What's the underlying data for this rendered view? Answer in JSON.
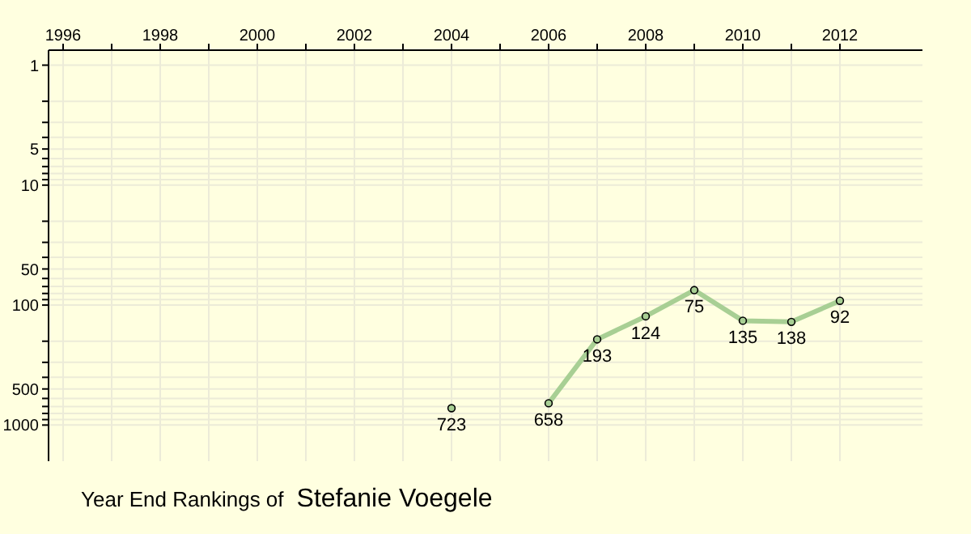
{
  "chart_data": {
    "type": "line",
    "title": "Year End Rankings of",
    "subtitle": "Stefanie Voegele",
    "x": [
      2004,
      2005,
      2006,
      2007,
      2008,
      2009,
      2010,
      2011,
      2012
    ],
    "series": [
      {
        "color": "#a8cf94",
        "values": [
          723,
          null,
          658,
          193,
          124,
          75,
          135,
          138,
          92
        ]
      }
    ],
    "xlim": [
      1995.7,
      2013.7
    ],
    "xticks": [
      1996,
      {
        "value": 1997,
        "label": null
      },
      1998,
      {
        "value": 1999,
        "label": null
      },
      2000,
      {
        "value": 2001,
        "label": null
      },
      2002,
      {
        "value": 2003,
        "label": null
      },
      2004,
      {
        "value": 2005,
        "label": null
      },
      2006,
      {
        "value": 2007,
        "label": null
      },
      2008,
      {
        "value": 2009,
        "label": null
      },
      2010,
      {
        "value": 2011,
        "label": null
      },
      2012
    ],
    "ylim": [
      2000,
      0.75
    ],
    "yticks": [
      1,
      {
        "value": 2,
        "label": null
      },
      {
        "value": 3,
        "label": null
      },
      {
        "value": 4,
        "label": null
      },
      5,
      {
        "value": 6,
        "label": null
      },
      {
        "value": 7,
        "label": null
      },
      {
        "value": 8,
        "label": null
      },
      {
        "value": 9,
        "label": null
      },
      10,
      {
        "value": 20,
        "label": null
      },
      {
        "value": 30,
        "label": null
      },
      {
        "value": 40,
        "label": null
      },
      50,
      {
        "value": 60,
        "label": null
      },
      {
        "value": 70,
        "label": null
      },
      {
        "value": 80,
        "label": null
      },
      {
        "value": 90,
        "label": null
      },
      100,
      {
        "value": 200,
        "label": null
      },
      {
        "value": 300,
        "label": null
      },
      {
        "value": 400,
        "label": null
      },
      500,
      {
        "value": 600,
        "label": null
      },
      {
        "value": 700,
        "label": null
      },
      {
        "value": 800,
        "label": null
      },
      {
        "value": 900,
        "label": null
      },
      1000
    ],
    "log": "y",
    "grid": true,
    "marker": "circle",
    "line_style": "solid",
    "data_labels": true
  }
}
